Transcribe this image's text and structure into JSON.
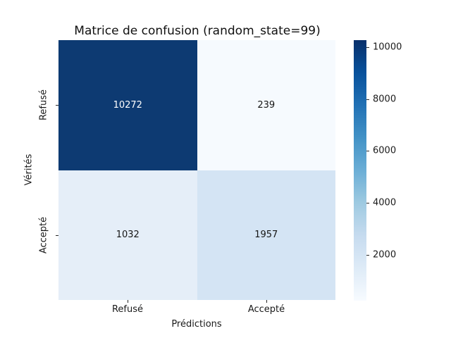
{
  "chart_data": {
    "type": "heatmap",
    "title": "Matrice de confusion (random_state=99)",
    "xlabel": "Prédictions",
    "ylabel": "Vérités",
    "x_categories": [
      "Refusé",
      "Accepté"
    ],
    "y_categories": [
      "Refusé",
      "Accepté"
    ],
    "matrix": [
      [
        10272,
        239
      ],
      [
        1032,
        1957
      ]
    ],
    "vmin": 239,
    "vmax": 10272,
    "colormap": "Blues",
    "grid": false,
    "legend_position": "colorbar-right",
    "colorbar_ticks_top_to_bottom": [
      "10000",
      "8000",
      "6000",
      "4000",
      "2000"
    ],
    "cells": [
      {
        "row": "Refusé",
        "col": "Refusé",
        "value": "10272",
        "bg": "#0d3a72",
        "fg": "#ffffff"
      },
      {
        "row": "Refusé",
        "col": "Accepté",
        "value": "239",
        "bg": "#f6fafe",
        "fg": "#151515"
      },
      {
        "row": "Accepté",
        "col": "Refusé",
        "value": "1032",
        "bg": "#e5eef8",
        "fg": "#151515"
      },
      {
        "row": "Accepté",
        "col": "Accepté",
        "value": "1957",
        "bg": "#d4e4f4",
        "fg": "#151515"
      }
    ],
    "colorbar_gradient_top_to_bottom": [
      "#08306b",
      "#08519c",
      "#2171b5",
      "#4292c6",
      "#6baed6",
      "#9ecae1",
      "#c6dbef",
      "#deebf7",
      "#f7fbff"
    ]
  }
}
